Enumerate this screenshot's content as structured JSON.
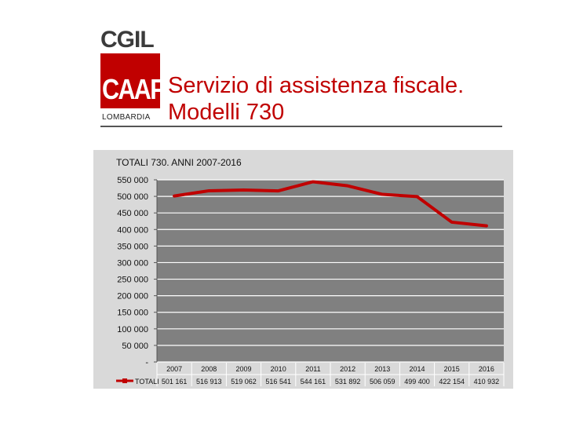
{
  "logo": {
    "top_text": "CGIL",
    "main_text": "CAAF",
    "region": "LOMBARDIA",
    "brand_color": "#c00000"
  },
  "slide": {
    "title_line1": "Servizio di assistenza fiscale.",
    "title_line2": "Modelli 730"
  },
  "chart_data": {
    "type": "line",
    "title": "TOTALI 730. ANNI 2007-2016",
    "categories": [
      "2007",
      "2008",
      "2009",
      "2010",
      "2011",
      "2012",
      "2013",
      "2014",
      "2015",
      "2016"
    ],
    "series": [
      {
        "name": "TOTALI",
        "values": [
          501161,
          516913,
          519062,
          516541,
          544161,
          531892,
          506059,
          499400,
          422154,
          410932
        ],
        "labels": [
          "501 161",
          "516 913",
          "519 062",
          "516 541",
          "544 161",
          "531 892",
          "506 059",
          "499 400",
          "422 154",
          "410 932"
        ],
        "color": "#c00000"
      }
    ],
    "yticks": [
      0,
      50000,
      100000,
      150000,
      200000,
      250000,
      300000,
      350000,
      400000,
      450000,
      500000,
      550000
    ],
    "ytick_labels": [
      "-",
      "50 000",
      "100 000",
      "150 000",
      "200 000",
      "250 000",
      "300 000",
      "350 000",
      "400 000",
      "450 000",
      "500 000",
      "550 000"
    ],
    "ylim": [
      0,
      550000
    ],
    "grid": true,
    "legend": "bottom-left data table",
    "plot_bg": "#808080"
  }
}
